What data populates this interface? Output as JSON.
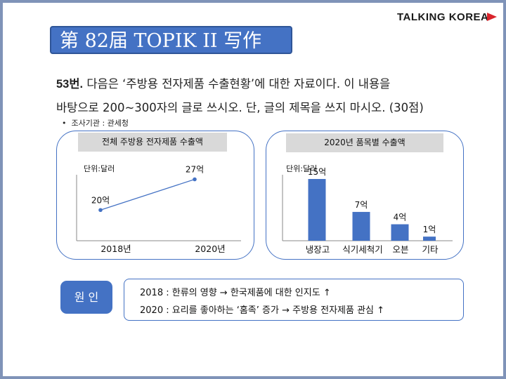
{
  "logo": {
    "text": "TALKING KOREA"
  },
  "title": "第 82届 TOPIK II 写作",
  "question": {
    "number": "53번.",
    "line1": "다음은 ‘주방용 전자제품 수출현황’에 대한 자료이다. 이 내용을",
    "line2": "바탕으로 200~300자의 글로 쓰시오. 단, 글의 제목을 쓰지 마시오. (30점)"
  },
  "source": "조사기관 : 관세청",
  "chart_left": {
    "header": "전체 주방용 전자제품 수출액",
    "unit": "단위:달러",
    "chart_data": {
      "type": "line",
      "categories": [
        "2018년",
        "2020년"
      ],
      "values": [
        20,
        27
      ],
      "value_labels": [
        "20억",
        "27억"
      ],
      "ylabel": "단위:달러",
      "color": "#4472c4"
    }
  },
  "chart_right": {
    "header": "2020년 품목별 수출액",
    "unit": "단위:달러",
    "chart_data": {
      "type": "bar",
      "categories": [
        "냉장고",
        "식기세척기",
        "오븐",
        "기타"
      ],
      "values": [
        15,
        7,
        4,
        1
      ],
      "value_labels": [
        "15억",
        "7억",
        "4억",
        "1억"
      ],
      "ylabel": "단위:달러",
      "color": "#4472c4"
    }
  },
  "reason": {
    "label": "원 인",
    "line1": "2018 : 한류의 영향 → 한국제품에 대한 인지도 ↑",
    "line2": "2020 : 요리를 좋아하는 ‘홈족’ 증가 → 주방용 전자제품 관심 ↑"
  }
}
